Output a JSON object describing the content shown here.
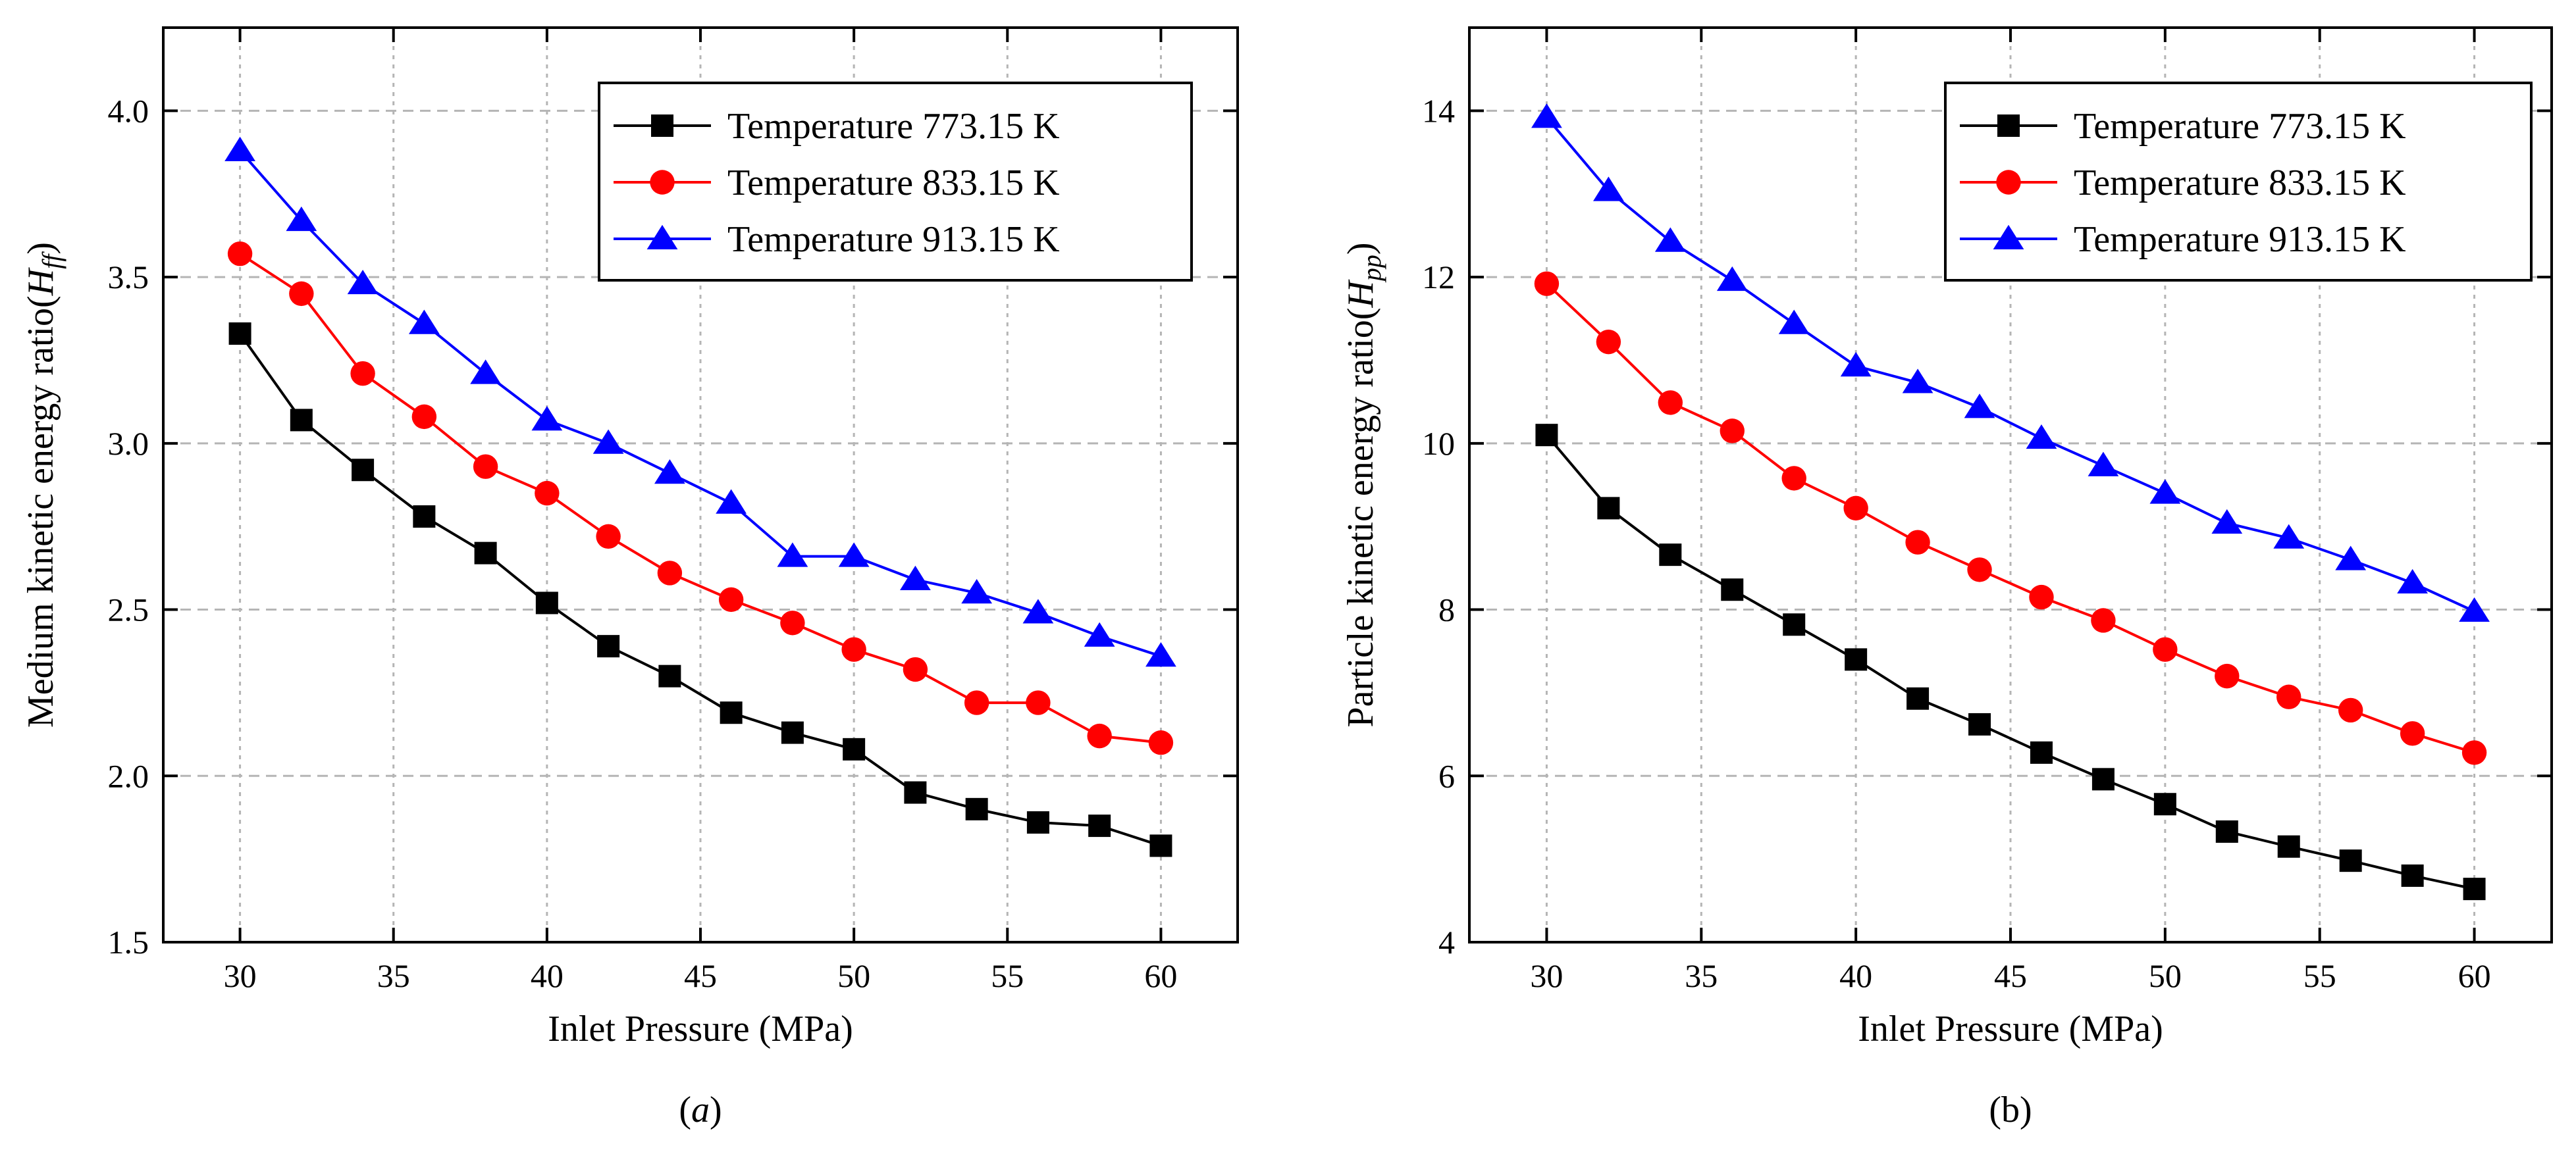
{
  "chart_data": [
    {
      "type": "line",
      "panel": "a",
      "title": "",
      "caption": "a",
      "xlabel": "Inlet Pressure (MPa)",
      "ylabel_main": "Medium kinetic energy ratio(",
      "ylabel_symbol": "H",
      "ylabel_sub": "ff",
      "ylabel_close": ")",
      "xlim": [
        27.5,
        62.5
      ],
      "ylim": [
        1.5,
        4.25
      ],
      "xticks": [
        30,
        35,
        40,
        45,
        50,
        55,
        60
      ],
      "xtick_labels": [
        "30",
        "35",
        "40",
        "45",
        "50",
        "55",
        "60"
      ],
      "yticks": [
        1.5,
        2.0,
        2.5,
        3.0,
        3.5,
        4.0
      ],
      "ytick_labels": [
        "1.5",
        "2.0",
        "2.5",
        "3.0",
        "3.5",
        "4.0"
      ],
      "grid": true,
      "legend_position": "top-right",
      "x": [
        30,
        32,
        34,
        36,
        38,
        40,
        42,
        44,
        46,
        48,
        50,
        52,
        54,
        56,
        58,
        60
      ],
      "series": [
        {
          "name": "Temperature 773.15 K",
          "color": "#000000",
          "marker": "square",
          "values": [
            3.33,
            3.07,
            2.92,
            2.78,
            2.67,
            2.52,
            2.39,
            2.3,
            2.19,
            2.13,
            2.08,
            1.95,
            1.9,
            1.86,
            1.85,
            1.79
          ]
        },
        {
          "name": "Temperature 833.15 K",
          "color": "#ff0000",
          "marker": "circle",
          "values": [
            3.57,
            3.45,
            3.21,
            3.08,
            2.93,
            2.85,
            2.72,
            2.61,
            2.53,
            2.46,
            2.38,
            2.32,
            2.22,
            2.22,
            2.12,
            2.1
          ]
        },
        {
          "name": "Temperature 913.15 K",
          "color": "#0000ff",
          "marker": "triangle",
          "values": [
            3.88,
            3.67,
            3.48,
            3.36,
            3.21,
            3.07,
            3.0,
            2.91,
            2.82,
            2.66,
            2.66,
            2.59,
            2.55,
            2.49,
            2.42,
            2.36
          ]
        }
      ]
    },
    {
      "type": "line",
      "panel": "b",
      "title": "",
      "caption": "(b)",
      "xlabel": "Inlet Pressure (MPa)",
      "ylabel_main": "Particle kinetic energy ratio(",
      "ylabel_symbol": "H",
      "ylabel_sub": "pp",
      "ylabel_close": ")",
      "xlim": [
        27.5,
        62.5
      ],
      "ylim": [
        4,
        15
      ],
      "xticks": [
        30,
        35,
        40,
        45,
        50,
        55,
        60
      ],
      "xtick_labels": [
        "30",
        "35",
        "40",
        "45",
        "50",
        "55",
        "60"
      ],
      "yticks": [
        4,
        6,
        8,
        10,
        12,
        14
      ],
      "ytick_labels": [
        "4",
        "6",
        "8",
        "10",
        "12",
        "14"
      ],
      "grid": true,
      "legend_position": "top-right",
      "x": [
        30,
        32,
        34,
        36,
        38,
        40,
        42,
        44,
        46,
        48,
        50,
        52,
        54,
        56,
        58,
        60
      ],
      "series": [
        {
          "name": "Temperature 773.15 K",
          "color": "#000000",
          "marker": "square",
          "values": [
            10.1,
            9.22,
            8.66,
            8.24,
            7.82,
            7.4,
            6.93,
            6.62,
            6.28,
            5.96,
            5.66,
            5.33,
            5.15,
            4.98,
            4.8,
            4.64
          ]
        },
        {
          "name": "Temperature 833.15 K",
          "color": "#ff0000",
          "marker": "circle",
          "values": [
            11.92,
            11.22,
            10.49,
            10.15,
            9.58,
            9.22,
            8.81,
            8.48,
            8.15,
            7.87,
            7.52,
            7.2,
            6.95,
            6.79,
            6.51,
            6.28
          ]
        },
        {
          "name": "Temperature 913.15 K",
          "color": "#0000ff",
          "marker": "triangle",
          "values": [
            13.92,
            13.04,
            12.43,
            11.96,
            11.44,
            10.93,
            10.73,
            10.43,
            10.06,
            9.73,
            9.4,
            9.04,
            8.86,
            8.6,
            8.32,
            7.98
          ]
        }
      ]
    }
  ]
}
